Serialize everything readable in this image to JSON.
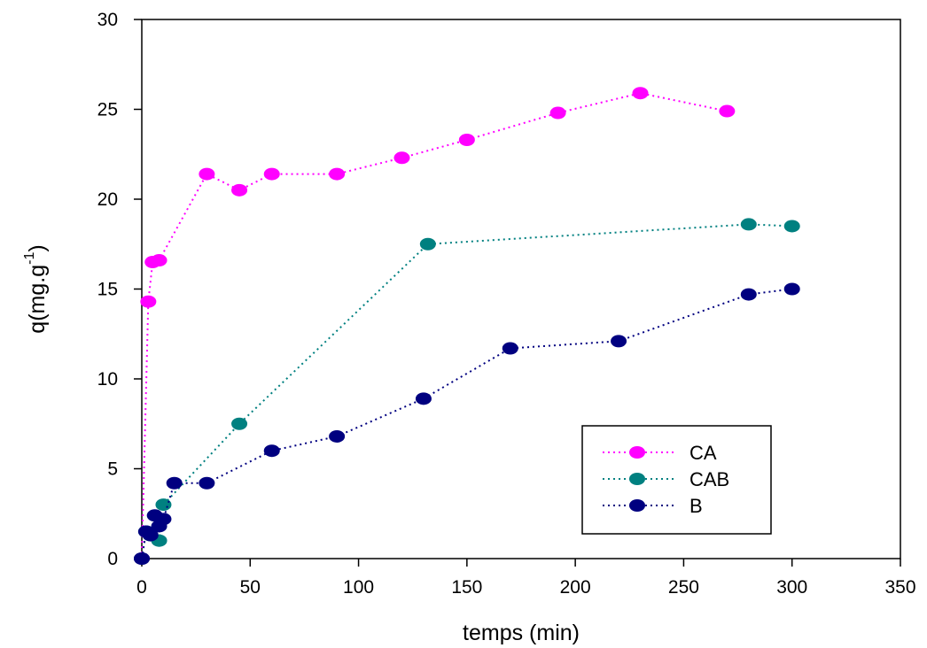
{
  "chart_data": {
    "type": "line",
    "xlabel": "temps (min)",
    "ylabel": "q(mg.g",
    "ylabel_superscript": "-1",
    "ylabel_close": ")",
    "xlim": [
      0,
      350
    ],
    "ylim": [
      0,
      30
    ],
    "xticks": [
      0,
      50,
      100,
      150,
      200,
      250,
      300,
      350
    ],
    "yticks": [
      0,
      5,
      10,
      15,
      20,
      25,
      30
    ],
    "grid": false,
    "legend_position": "bottom-right",
    "series": [
      {
        "name": "CA",
        "color": "#ff00ff",
        "line_style": "dotted",
        "x": [
          0,
          3,
          5,
          8,
          30,
          45,
          60,
          90,
          120,
          150,
          192,
          230,
          270
        ],
        "y": [
          0,
          14.3,
          16.5,
          16.6,
          21.4,
          20.5,
          21.4,
          21.4,
          22.3,
          23.3,
          24.8,
          25.9,
          24.9
        ]
      },
      {
        "name": "CAB",
        "color": "#008080",
        "line_style": "dotted",
        "x": [
          0,
          2,
          4,
          8,
          10,
          45,
          132,
          280,
          300
        ],
        "y": [
          0,
          1.5,
          1.3,
          1.0,
          3.0,
          7.5,
          17.5,
          18.6,
          18.5
        ]
      },
      {
        "name": "B",
        "color": "#000080",
        "line_style": "dotted",
        "x": [
          0,
          2,
          4,
          6,
          8,
          10,
          15,
          30,
          60,
          90,
          130,
          170,
          220,
          280,
          300
        ],
        "y": [
          0,
          1.5,
          1.3,
          2.4,
          1.8,
          2.2,
          4.2,
          4.2,
          6.0,
          6.8,
          8.9,
          11.7,
          12.1,
          14.7,
          15.0
        ]
      }
    ]
  }
}
